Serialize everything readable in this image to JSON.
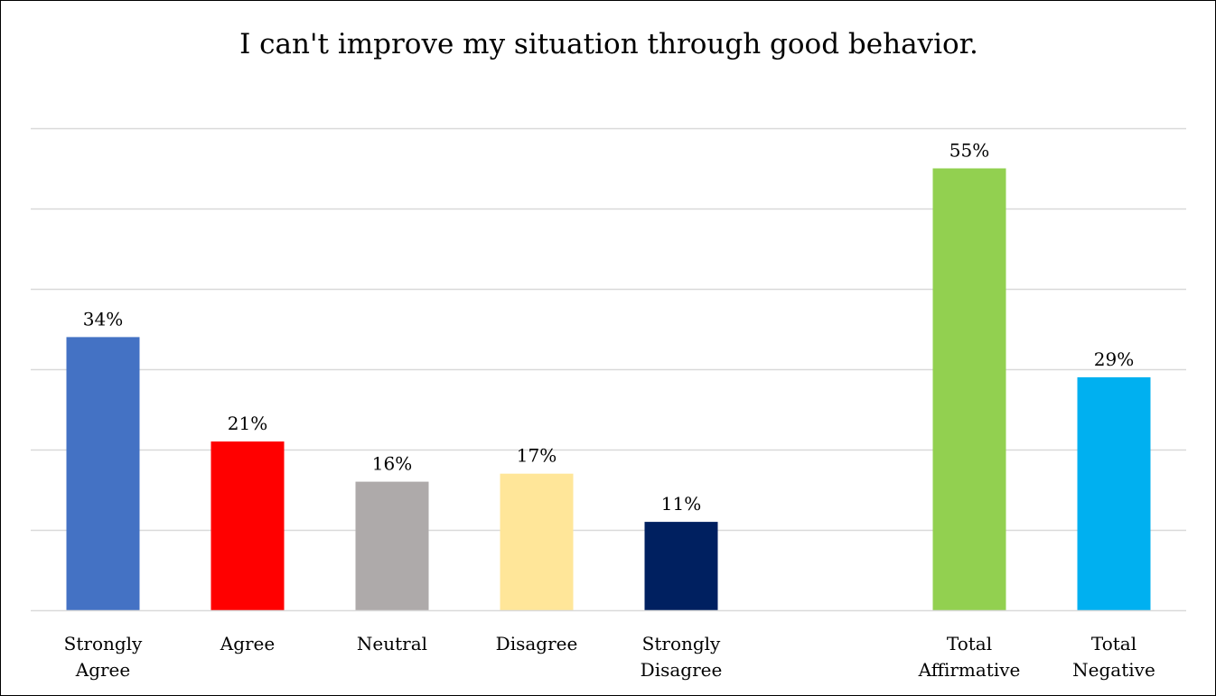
{
  "chart_data": {
    "type": "bar",
    "title": "I can't improve my situation through good behavior.",
    "xlabel": "",
    "ylabel": "",
    "ylim": [
      0,
      60
    ],
    "grid": true,
    "legend": "none",
    "categories": [
      [
        "Strongly",
        "Agree"
      ],
      [
        "Agree"
      ],
      [
        "Neutral"
      ],
      [
        "Disagree"
      ],
      [
        "Strongly",
        "Disagree"
      ],
      [
        "Total",
        "Affirmative"
      ],
      [
        "Total",
        "Negative"
      ]
    ],
    "values": [
      34,
      21,
      16,
      17,
      11,
      55,
      29
    ],
    "value_labels": [
      "34%",
      "21%",
      "16%",
      "17%",
      "11%",
      "55%",
      "29%"
    ],
    "colors": [
      "#4472C4",
      "#FF0000",
      "#AEAAAA",
      "#FFE699",
      "#002060",
      "#92D050",
      "#00B0F0"
    ]
  }
}
